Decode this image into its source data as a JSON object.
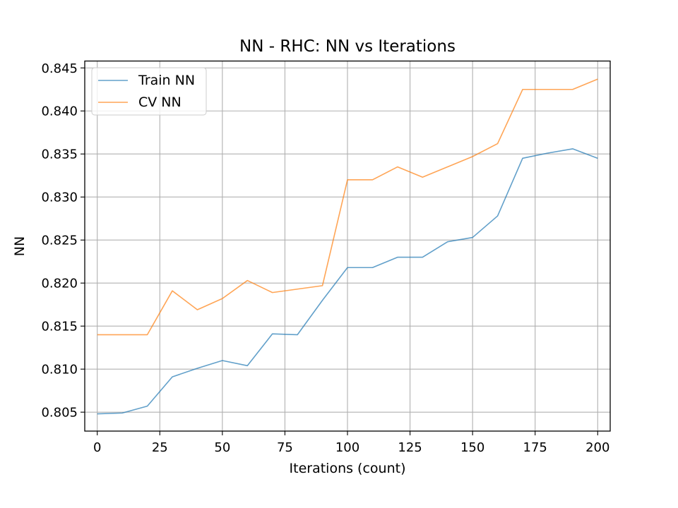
{
  "chart_data": {
    "type": "line",
    "title": "NN - RHC: NN vs Iterations",
    "xlabel": "Iterations (count)",
    "ylabel": "NN",
    "xlim": [
      -5,
      205
    ],
    "ylim": [
      0.8028,
      0.8458
    ],
    "xticks": [
      0,
      25,
      50,
      75,
      100,
      125,
      150,
      175,
      200
    ],
    "yticks": [
      0.805,
      0.81,
      0.815,
      0.82,
      0.825,
      0.83,
      0.835,
      0.84,
      0.845
    ],
    "xtick_labels": [
      "0",
      "25",
      "50",
      "75",
      "100",
      "125",
      "150",
      "175",
      "200"
    ],
    "ytick_labels": [
      "0.805",
      "0.810",
      "0.815",
      "0.820",
      "0.825",
      "0.830",
      "0.835",
      "0.840",
      "0.845"
    ],
    "grid": true,
    "legend_position": "top-left",
    "x": [
      0,
      10,
      20,
      30,
      40,
      50,
      60,
      70,
      80,
      90,
      100,
      110,
      120,
      130,
      140,
      150,
      160,
      170,
      180,
      190,
      200
    ],
    "series": [
      {
        "name": "Train NN",
        "color": "#1f77b4",
        "values": [
          0.8048,
          0.8049,
          0.8057,
          0.8091,
          0.8101,
          0.811,
          0.8104,
          0.8141,
          0.814,
          0.818,
          0.8218,
          0.8218,
          0.823,
          0.823,
          0.8248,
          0.8253,
          0.8278,
          0.8345,
          0.8351,
          0.8356,
          0.8345
        ]
      },
      {
        "name": "CV NN",
        "color": "#ff7f0e",
        "values": [
          0.814,
          0.814,
          0.814,
          0.8191,
          0.8169,
          0.8182,
          0.8203,
          0.8189,
          0.8193,
          0.8197,
          0.832,
          0.832,
          0.8335,
          0.8323,
          0.8335,
          0.8347,
          0.8362,
          0.8425,
          0.8425,
          0.8425,
          0.8437
        ]
      }
    ]
  }
}
